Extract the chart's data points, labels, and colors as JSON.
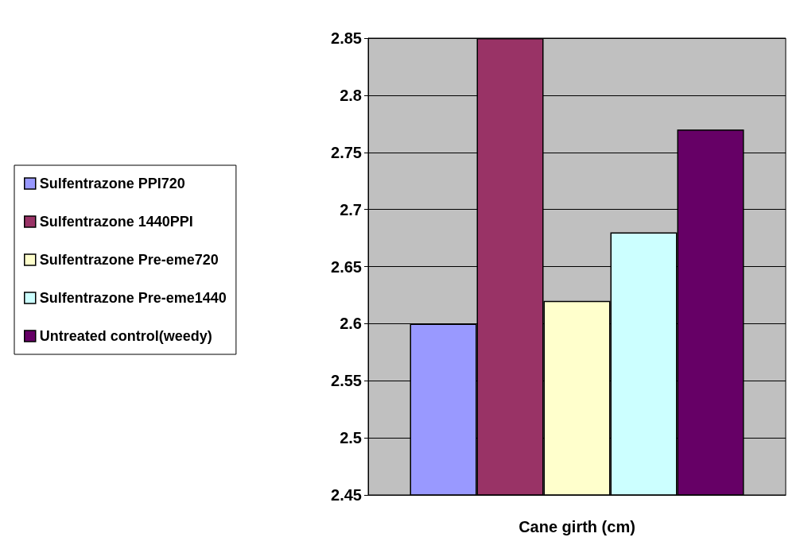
{
  "chart_data": {
    "type": "bar",
    "xlabel": "Cane girth (cm)",
    "categories": [
      null
    ],
    "series": [
      {
        "name": "Sulfentrazone PPI720",
        "color": "#9999ff",
        "values": [
          2.6
        ]
      },
      {
        "name": "Sulfentrazone 1440PPI",
        "color": "#993366",
        "values": [
          2.85
        ]
      },
      {
        "name": "Sulfentrazone Pre-eme720",
        "color": "#ffffcc",
        "values": [
          2.62
        ]
      },
      {
        "name": "Sulfentrazone Pre-eme1440",
        "color": "#ccffff",
        "values": [
          2.68
        ]
      },
      {
        "name": "Untreated control(weedy)",
        "color": "#660066",
        "values": [
          2.77
        ]
      }
    ],
    "ylim": [
      2.45,
      2.85
    ],
    "yticks": [
      2.45,
      2.5,
      2.55,
      2.6,
      2.65,
      2.7,
      2.75,
      2.8,
      2.85
    ],
    "grid": "y",
    "legend": "left"
  }
}
